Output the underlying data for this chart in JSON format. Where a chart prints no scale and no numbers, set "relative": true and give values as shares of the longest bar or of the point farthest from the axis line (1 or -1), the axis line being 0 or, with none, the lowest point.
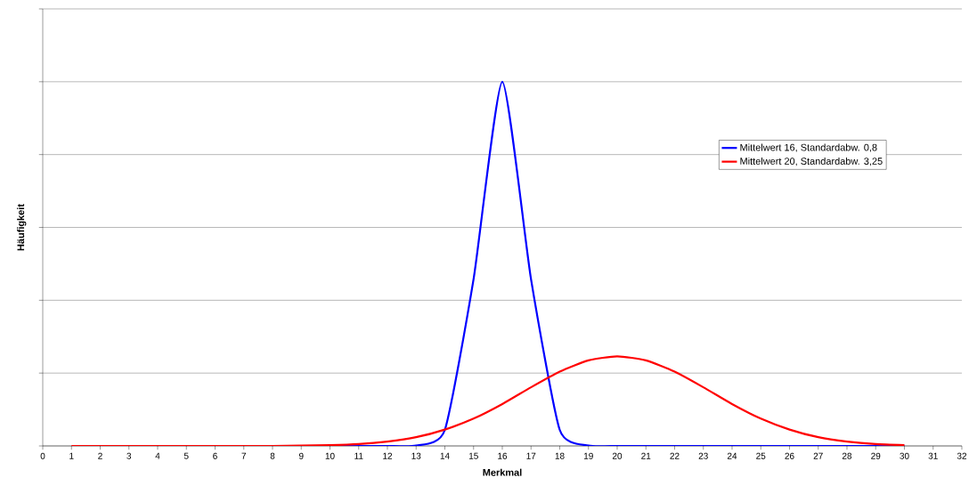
{
  "chart_data": {
    "type": "line",
    "xlabel": "Merkmal",
    "ylabel": "Häufigkeit",
    "relative": true,
    "x": [
      1,
      2,
      3,
      4,
      5,
      6,
      7,
      8,
      9,
      10,
      11,
      12,
      13,
      14,
      15,
      16,
      17,
      18,
      19,
      20,
      21,
      22,
      23,
      24,
      25,
      26,
      27,
      28,
      29,
      30
    ],
    "xlim": [
      0,
      32
    ],
    "xticks": [
      0,
      1,
      2,
      3,
      4,
      5,
      6,
      7,
      8,
      9,
      10,
      11,
      12,
      13,
      14,
      15,
      16,
      17,
      18,
      19,
      20,
      21,
      22,
      23,
      24,
      25,
      26,
      27,
      28,
      29,
      30,
      31,
      32
    ],
    "series": [
      {
        "name": "Mittelwert 16, Standardabw. 0,8",
        "color": "#0000ff",
        "values": [
          null,
          null,
          null,
          null,
          null,
          null,
          null,
          null,
          null,
          0,
          0,
          0,
          0.001,
          0.044,
          0.458,
          1,
          0.458,
          0.044,
          0.001,
          0,
          0,
          0,
          0,
          0,
          0,
          0,
          0,
          0,
          0,
          0
        ]
      },
      {
        "name": "Mittelwert 20, Standardabw. 3,25",
        "color": "#ff0000",
        "values": [
          0,
          0,
          0,
          0,
          0,
          0,
          0,
          0,
          0.001,
          0.002,
          0.005,
          0.012,
          0.024,
          0.045,
          0.075,
          0.115,
          0.161,
          0.204,
          0.235,
          0.246,
          0.235,
          0.204,
          0.161,
          0.115,
          0.075,
          0.045,
          0.024,
          0.012,
          0.005,
          0.002
        ]
      }
    ],
    "grid": "y",
    "legend": "top right",
    "marker": "none",
    "line_style": "solid"
  }
}
